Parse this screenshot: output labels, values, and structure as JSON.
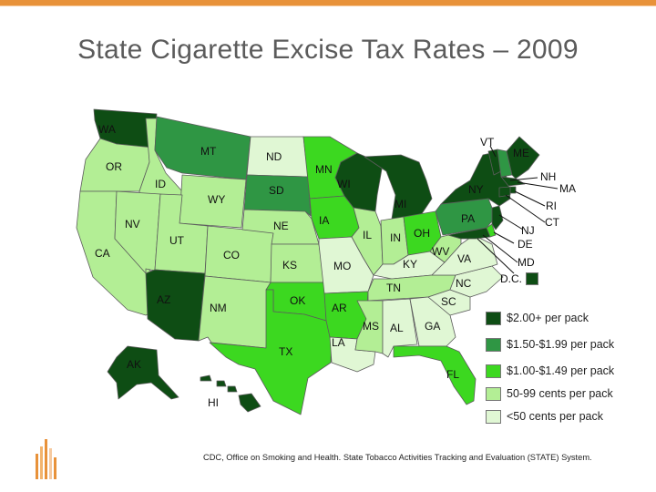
{
  "page": {
    "title": "State Cigarette Excise Tax Rates – 2009"
  },
  "colors": {
    "tier1": "#0e4d14",
    "tier2": "#2f9644",
    "tier3": "#3cd820",
    "tier4": "#b3ee95",
    "tier5": "#e0f7d4",
    "accent": "#e8923a"
  },
  "legend": [
    {
      "tier": "tier1",
      "label": "$2.00+ per pack"
    },
    {
      "tier": "tier2",
      "label": "$1.50-$1.99 per pack"
    },
    {
      "tier": "tier3",
      "label": "$1.00-$1.49 per pack"
    },
    {
      "tier": "tier4",
      "label": "50-99 cents per pack"
    },
    {
      "tier": "tier5",
      "label": "<50 cents per pack"
    }
  ],
  "states": {
    "WA": {
      "label": "WA",
      "tier": "tier1"
    },
    "OR": {
      "label": "OR",
      "tier": "tier4"
    },
    "CA": {
      "label": "CA",
      "tier": "tier4"
    },
    "ID": {
      "label": "ID",
      "tier": "tier4"
    },
    "NV": {
      "label": "NV",
      "tier": "tier4"
    },
    "MT": {
      "label": "MT",
      "tier": "tier2"
    },
    "WY": {
      "label": "WY",
      "tier": "tier4"
    },
    "UT": {
      "label": "UT",
      "tier": "tier4"
    },
    "AZ": {
      "label": "AZ",
      "tier": "tier1"
    },
    "CO": {
      "label": "CO",
      "tier": "tier4"
    },
    "NM": {
      "label": "NM",
      "tier": "tier4"
    },
    "ND": {
      "label": "ND",
      "tier": "tier5"
    },
    "SD": {
      "label": "SD",
      "tier": "tier2"
    },
    "NE": {
      "label": "NE",
      "tier": "tier4"
    },
    "KS": {
      "label": "KS",
      "tier": "tier4"
    },
    "OK": {
      "label": "OK",
      "tier": "tier3"
    },
    "TX": {
      "label": "TX",
      "tier": "tier3"
    },
    "MN": {
      "label": "MN",
      "tier": "tier3"
    },
    "IA": {
      "label": "IA",
      "tier": "tier3"
    },
    "MO": {
      "label": "MO",
      "tier": "tier5"
    },
    "AR": {
      "label": "AR",
      "tier": "tier3"
    },
    "LA": {
      "label": "LA",
      "tier": "tier5"
    },
    "WI": {
      "label": "WI",
      "tier": "tier1"
    },
    "IL": {
      "label": "IL",
      "tier": "tier4"
    },
    "MI": {
      "label": "MI",
      "tier": "tier1"
    },
    "IN": {
      "label": "IN",
      "tier": "tier4"
    },
    "OH": {
      "label": "OH",
      "tier": "tier3"
    },
    "KY": {
      "label": "KY",
      "tier": "tier5"
    },
    "TN": {
      "label": "TN",
      "tier": "tier4"
    },
    "MS": {
      "label": "MS",
      "tier": "tier4"
    },
    "AL": {
      "label": "AL",
      "tier": "tier5"
    },
    "GA": {
      "label": "GA",
      "tier": "tier5"
    },
    "FL": {
      "label": "FL",
      "tier": "tier3"
    },
    "SC": {
      "label": "SC",
      "tier": "tier5"
    },
    "NC": {
      "label": "NC",
      "tier": "tier5"
    },
    "VA": {
      "label": "VA",
      "tier": "tier5"
    },
    "WV": {
      "label": "WV",
      "tier": "tier4"
    },
    "PA": {
      "label": "PA",
      "tier": "tier2"
    },
    "NY": {
      "label": "NY",
      "tier": "tier1"
    },
    "VT": {
      "label": "VT",
      "tier": "tier1"
    },
    "NH": {
      "label": "NH",
      "tier": "tier2"
    },
    "ME": {
      "label": "ME",
      "tier": "tier1"
    },
    "MA": {
      "label": "MA",
      "tier": "tier1"
    },
    "RI": {
      "label": "RI",
      "tier": "tier1"
    },
    "CT": {
      "label": "CT",
      "tier": "tier1"
    },
    "NJ": {
      "label": "NJ",
      "tier": "tier1"
    },
    "DE": {
      "label": "DE",
      "tier": "tier3"
    },
    "MD": {
      "label": "MD",
      "tier": "tier1"
    },
    "DC": {
      "label": "D.C.",
      "tier": "tier1"
    },
    "AK": {
      "label": "AK",
      "tier": "tier1"
    },
    "HI": {
      "label": "HI",
      "tier": "tier1"
    }
  },
  "source": "CDC, Office on Smoking and Health. State Tobacco Activities Tracking and Evaluation (STATE) System."
}
